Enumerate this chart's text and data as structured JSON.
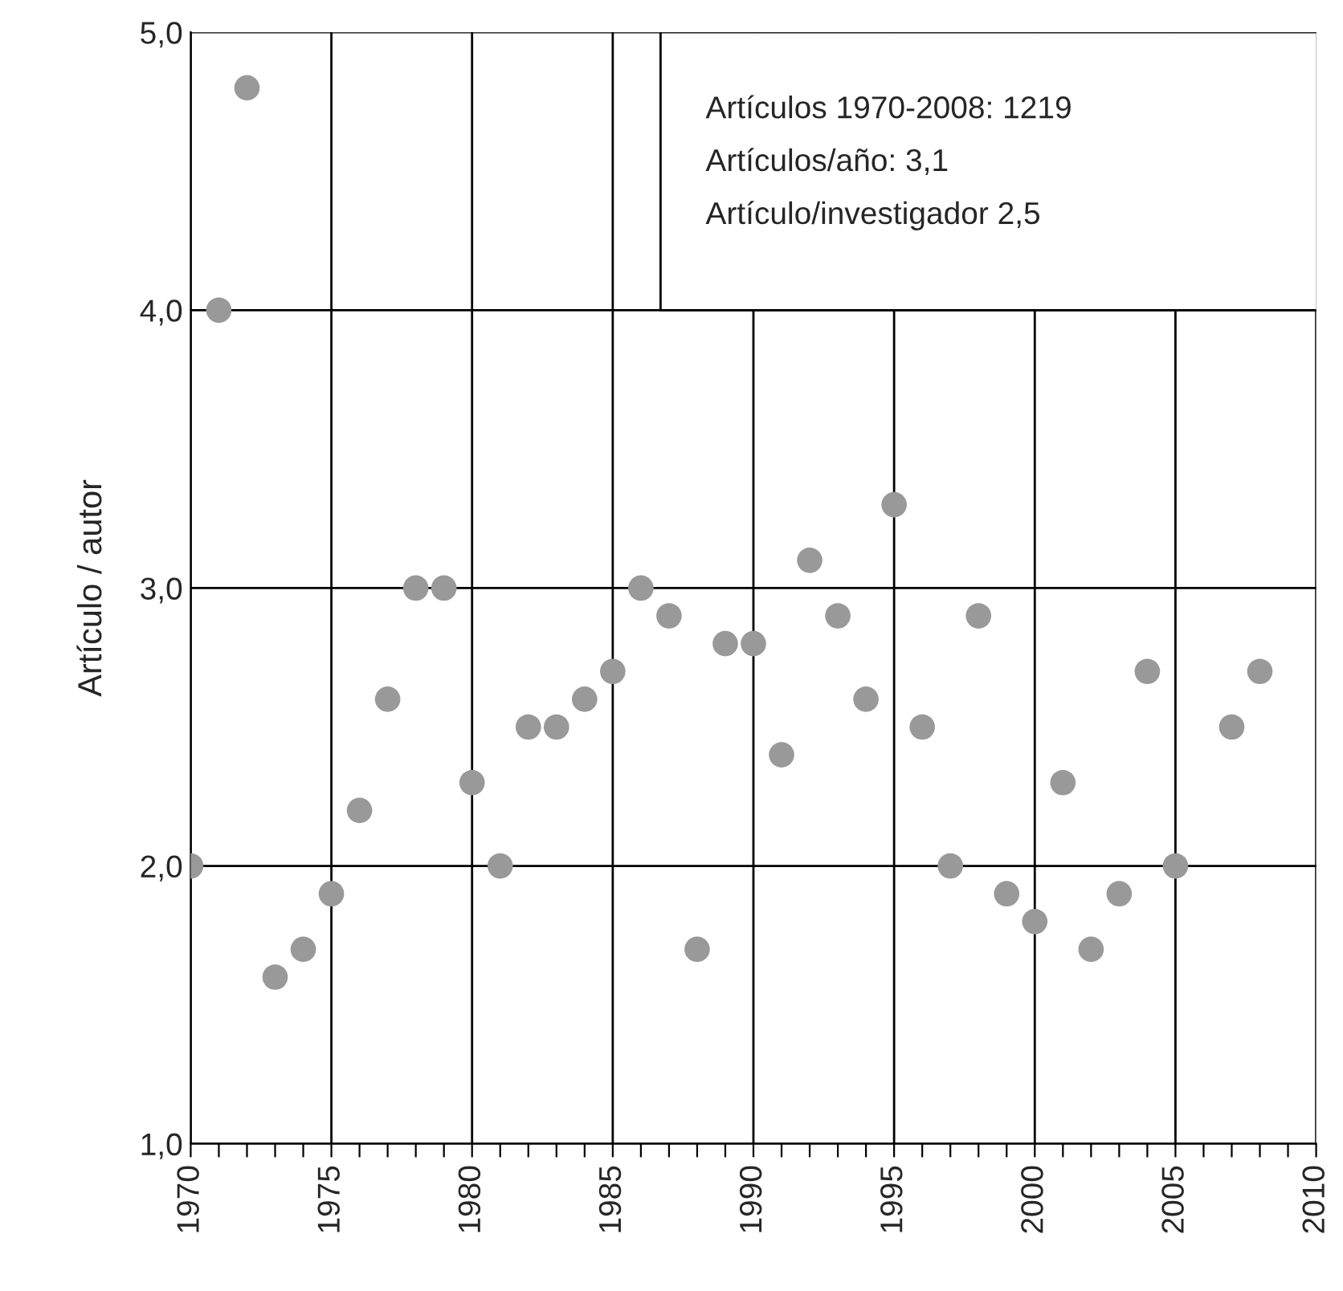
{
  "chart_data": {
    "type": "scatter",
    "ylabel": "Artículo / autor",
    "x": [
      1970,
      1971,
      1972,
      1973,
      1974,
      1975,
      1976,
      1977,
      1978,
      1979,
      1980,
      1981,
      1982,
      1983,
      1984,
      1985,
      1986,
      1987,
      1988,
      1989,
      1990,
      1991,
      1992,
      1993,
      1994,
      1995,
      1996,
      1997,
      1998,
      1999,
      2000,
      2001,
      2002,
      2003,
      2004,
      2005,
      2007,
      2008
    ],
    "series": [
      {
        "color": "#999999",
        "values": [
          2.0,
          4.0,
          4.8,
          1.6,
          1.7,
          1.9,
          2.2,
          2.6,
          3.0,
          3.0,
          2.3,
          2.0,
          2.5,
          2.5,
          2.6,
          2.7,
          3.0,
          2.9,
          1.7,
          2.8,
          2.8,
          2.4,
          3.1,
          2.9,
          2.6,
          3.3,
          2.5,
          2.0,
          2.9,
          1.9,
          1.8,
          2.3,
          1.7,
          1.9,
          2.7,
          2.0,
          2.5,
          2.7
        ]
      }
    ],
    "xlim": [
      1970,
      2010
    ],
    "ylim": [
      1.0,
      5.0
    ],
    "xticks": [
      1970,
      {
        "value": 1971,
        "label": null
      },
      {
        "value": 1972,
        "label": null
      },
      {
        "value": 1973,
        "label": null
      },
      {
        "value": 1974,
        "label": null
      },
      1975,
      {
        "value": 1976,
        "label": null
      },
      {
        "value": 1977,
        "label": null
      },
      {
        "value": 1978,
        "label": null
      },
      {
        "value": 1979,
        "label": null
      },
      1980,
      {
        "value": 1981,
        "label": null
      },
      {
        "value": 1982,
        "label": null
      },
      {
        "value": 1983,
        "label": null
      },
      {
        "value": 1984,
        "label": null
      },
      1985,
      {
        "value": 1986,
        "label": null
      },
      {
        "value": 1987,
        "label": null
      },
      {
        "value": 1988,
        "label": null
      },
      {
        "value": 1989,
        "label": null
      },
      1990,
      {
        "value": 1991,
        "label": null
      },
      {
        "value": 1992,
        "label": null
      },
      {
        "value": 1993,
        "label": null
      },
      {
        "value": 1994,
        "label": null
      },
      1995,
      {
        "value": 1996,
        "label": null
      },
      {
        "value": 1997,
        "label": null
      },
      {
        "value": 1998,
        "label": null
      },
      {
        "value": 1999,
        "label": null
      },
      2000,
      {
        "value": 2001,
        "label": null
      },
      {
        "value": 2002,
        "label": null
      },
      {
        "value": 2003,
        "label": null
      },
      {
        "value": 2004,
        "label": null
      },
      2005,
      {
        "value": 2006,
        "label": null
      },
      {
        "value": 2007,
        "label": null
      },
      {
        "value": 2008,
        "label": null
      },
      {
        "value": 2009,
        "label": null
      },
      2010
    ],
    "yticks": [
      {
        "value": 1.0,
        "label": "1,0"
      },
      {
        "value": 2.0,
        "label": "2,0"
      },
      {
        "value": 3.0,
        "label": "3,0"
      },
      {
        "value": 4.0,
        "label": "4,0"
      },
      {
        "value": 5.0,
        "label": "5,0"
      }
    ],
    "grid": true,
    "marker": "circle",
    "annotations": [
      "Artículos 1970-2008: 1219",
      "Artículos/año: 3,1",
      "Artículo/investigador 2,5"
    ]
  }
}
